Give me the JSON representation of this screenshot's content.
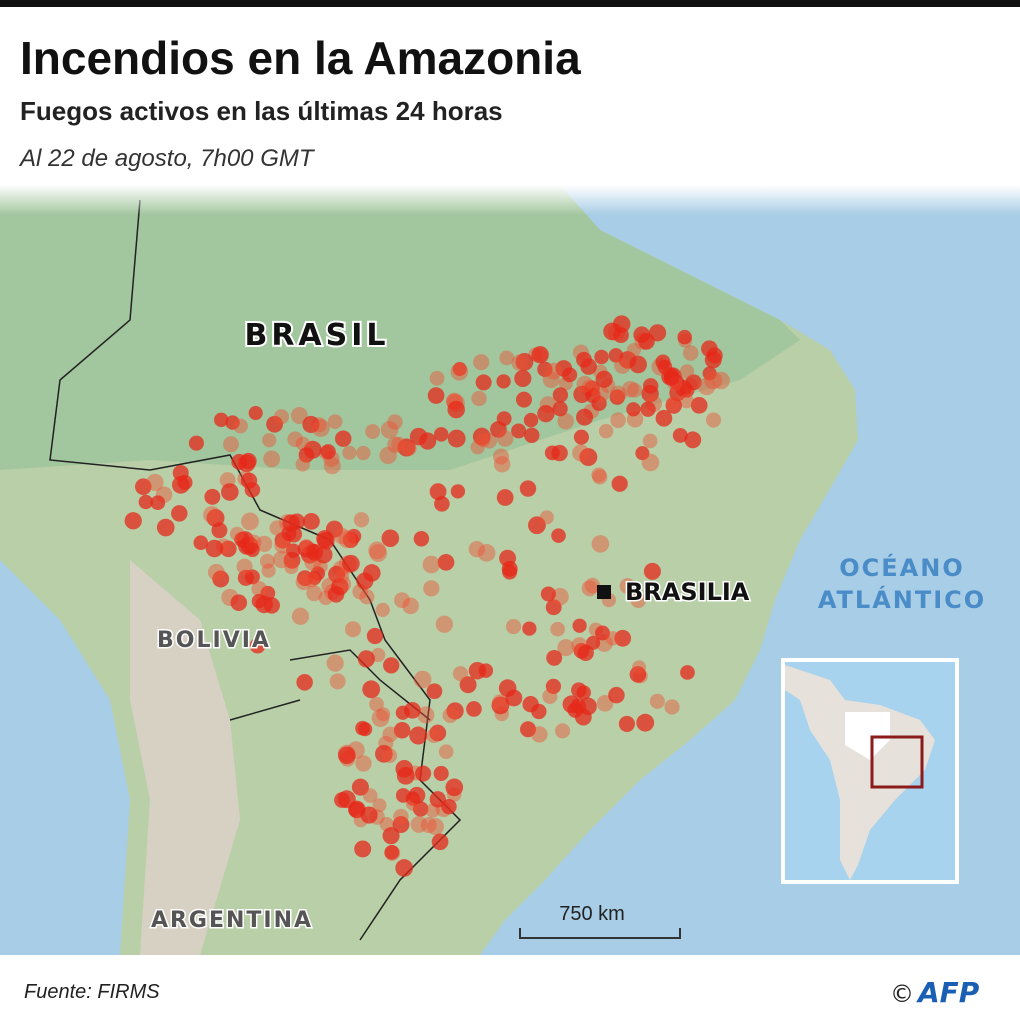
{
  "header": {
    "title": "Incendios en la Amazonia",
    "subtitle": "Fuegos activos en las últimas 24 horas",
    "date": "Al 22 de agosto, 7h00 GMT"
  },
  "map": {
    "labels": {
      "brasil": "BRASIL",
      "bolivia": "BOLIVIA",
      "argentina": "ARGENTINA",
      "brasilia": "BRASILIA",
      "ocean": [
        "OCÉANO",
        "ATLÁNTICO"
      ]
    },
    "scale": "750 km"
  },
  "footer": {
    "source": "Fuente: FIRMS",
    "copyright": "©",
    "logo": "AFP"
  }
}
